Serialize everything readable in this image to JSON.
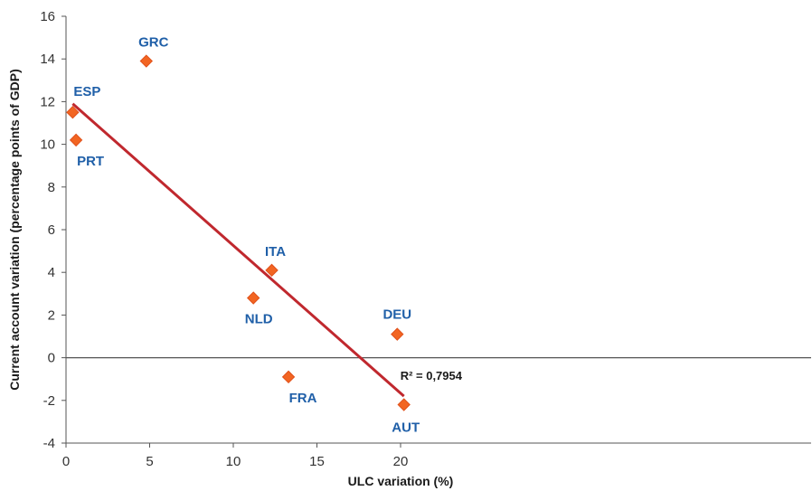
{
  "chart_data": {
    "type": "scatter",
    "xlabel": "ULC variation (%)",
    "ylabel": "Current account variation (percentage points of GDP)",
    "xlim": [
      0,
      22.5
    ],
    "ylim": [
      -4,
      16
    ],
    "xticks": [
      0,
      5,
      10,
      15,
      20
    ],
    "yticks": [
      -4,
      -2,
      0,
      2,
      4,
      6,
      8,
      10,
      12,
      14,
      16
    ],
    "points": [
      {
        "label": "ESP",
        "x": 0.4,
        "y": 11.5
      },
      {
        "label": "PRT",
        "x": 0.6,
        "y": 10.2
      },
      {
        "label": "GRC",
        "x": 4.8,
        "y": 13.9
      },
      {
        "label": "NLD",
        "x": 11.2,
        "y": 2.8
      },
      {
        "label": "ITA",
        "x": 12.3,
        "y": 4.1
      },
      {
        "label": "FRA",
        "x": 13.3,
        "y": -0.9
      },
      {
        "label": "DEU",
        "x": 19.8,
        "y": 1.1
      },
      {
        "label": "AUT",
        "x": 20.2,
        "y": -2.2
      }
    ],
    "trendline": {
      "x": [
        0.4,
        20.2
      ],
      "y": [
        11.9,
        -1.8
      ],
      "r2_label": "R² = 0,7954"
    },
    "colors": {
      "marker": "#f26522",
      "marker_edge": "#e0501a",
      "label": "#1f5fa8",
      "trendline": "#c0282e",
      "axis": "#555555",
      "zero_line": "#555555"
    },
    "grid": false,
    "legend": "none"
  }
}
